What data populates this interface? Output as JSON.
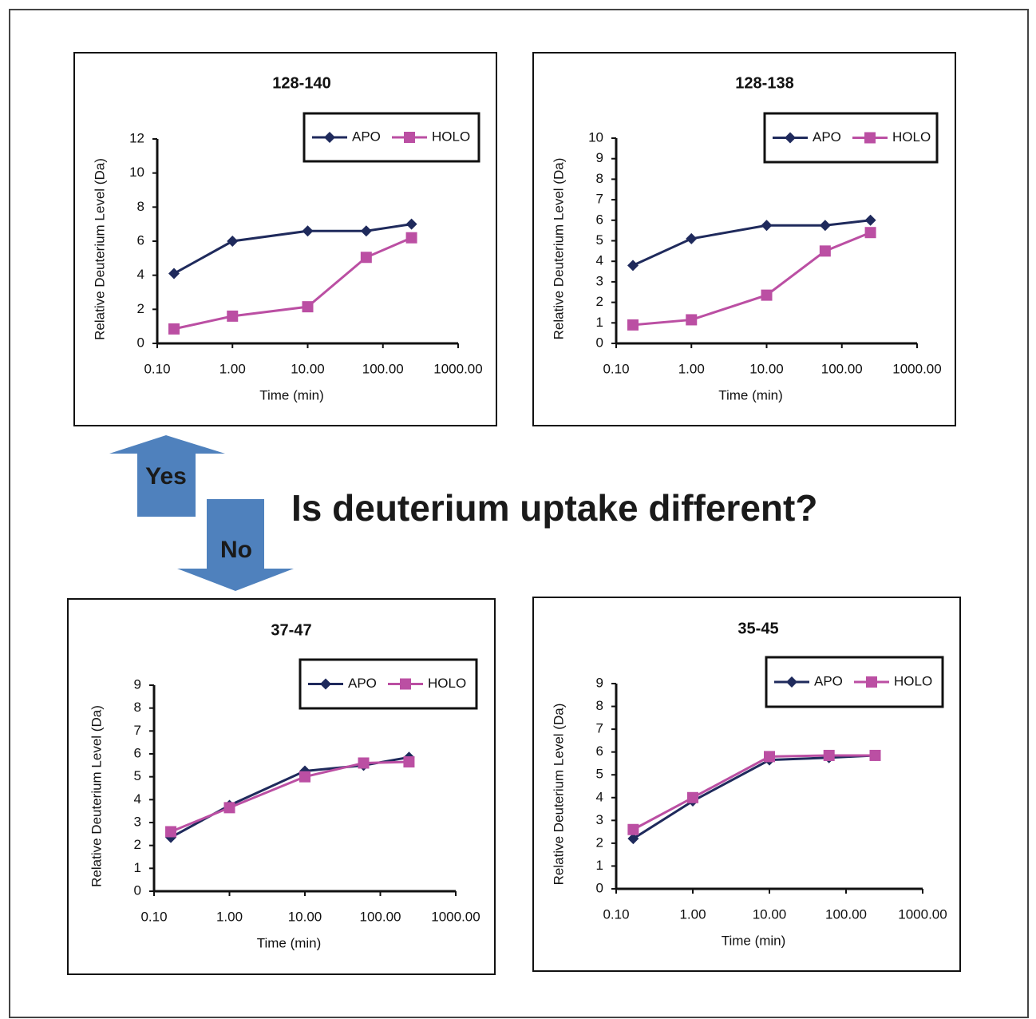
{
  "annotations": {
    "question": "Is deuterium uptake different?",
    "yes": "Yes",
    "no": "No"
  },
  "chart_data": [
    {
      "type": "line",
      "title": "128-140",
      "x_label": "Time (min)",
      "y_label": "Relative Deuterium Level  (Da)",
      "x_scale": "log",
      "legend": "upper right",
      "x": [
        0.167,
        1,
        10,
        60,
        240
      ],
      "xlim": [
        0.1,
        1000
      ],
      "xticks": [
        {
          "value": 0.1,
          "label": "0.10"
        },
        {
          "value": 1,
          "label": "1.00"
        },
        {
          "value": 10,
          "label": "10.00"
        },
        {
          "value": 100,
          "label": "100.00"
        },
        {
          "value": 1000,
          "label": "1000.00"
        }
      ],
      "ylim": [
        0,
        12
      ],
      "yticks": [
        0,
        2,
        4,
        6,
        8,
        10,
        12
      ],
      "series": [
        {
          "name": "APO",
          "color": "#1f2a5c",
          "marker": "diamond",
          "values": [
            4.1,
            6.0,
            6.6,
            6.6,
            7.0
          ]
        },
        {
          "name": "HOLO",
          "color": "#bb4fa3",
          "marker": "square",
          "values": [
            0.85,
            1.6,
            2.15,
            5.05,
            6.2
          ]
        }
      ]
    },
    {
      "type": "line",
      "title": "128-138",
      "x_label": "Time (min)",
      "y_label": "Relative Deuterium Level  (Da)",
      "x_scale": "log",
      "legend": "upper right",
      "x": [
        0.167,
        1,
        10,
        60,
        240
      ],
      "xlim": [
        0.1,
        1000
      ],
      "xticks": [
        {
          "value": 0.1,
          "label": "0.10"
        },
        {
          "value": 1,
          "label": "1.00"
        },
        {
          "value": 10,
          "label": "10.00"
        },
        {
          "value": 100,
          "label": "100.00"
        },
        {
          "value": 1000,
          "label": "1000.00"
        }
      ],
      "ylim": [
        0,
        10
      ],
      "yticks": [
        0,
        1,
        2,
        3,
        4,
        5,
        6,
        7,
        8,
        9,
        10
      ],
      "series": [
        {
          "name": "APO",
          "color": "#1f2a5c",
          "marker": "diamond",
          "values": [
            3.8,
            5.1,
            5.75,
            5.75,
            6.0
          ]
        },
        {
          "name": "HOLO",
          "color": "#bb4fa3",
          "marker": "square",
          "values": [
            0.9,
            1.15,
            2.35,
            4.5,
            5.4
          ]
        }
      ]
    },
    {
      "type": "line",
      "title": "37-47",
      "x_label": "Time (min)",
      "y_label": "Relative Deuterium Level  (Da)",
      "x_scale": "log",
      "legend": "upper right",
      "x": [
        0.167,
        1,
        10,
        60,
        240
      ],
      "xlim": [
        0.1,
        1000
      ],
      "xticks": [
        {
          "value": 0.1,
          "label": "0.10"
        },
        {
          "value": 1,
          "label": "1.00"
        },
        {
          "value": 10,
          "label": "10.00"
        },
        {
          "value": 100,
          "label": "100.00"
        },
        {
          "value": 1000,
          "label": "1000.00"
        }
      ],
      "ylim": [
        0,
        9
      ],
      "yticks": [
        0,
        1,
        2,
        3,
        4,
        5,
        6,
        7,
        8,
        9
      ],
      "series": [
        {
          "name": "APO",
          "color": "#1f2a5c",
          "marker": "diamond",
          "values": [
            2.35,
            3.75,
            5.25,
            5.5,
            5.85
          ]
        },
        {
          "name": "HOLO",
          "color": "#bb4fa3",
          "marker": "square",
          "values": [
            2.6,
            3.65,
            5.0,
            5.6,
            5.65
          ]
        }
      ]
    },
    {
      "type": "line",
      "title": "35-45",
      "x_label": "Time (min)",
      "y_label": "Relative Deuterium Level  (Da)",
      "x_scale": "log",
      "legend": "upper right",
      "x": [
        0.167,
        1,
        10,
        60,
        240
      ],
      "xlim": [
        0.1,
        1000
      ],
      "xticks": [
        {
          "value": 0.1,
          "label": "0.10"
        },
        {
          "value": 1,
          "label": "1.00"
        },
        {
          "value": 10,
          "label": "10.00"
        },
        {
          "value": 100,
          "label": "100.00"
        },
        {
          "value": 1000,
          "label": "1000.00"
        }
      ],
      "ylim": [
        0,
        9
      ],
      "yticks": [
        0,
        1,
        2,
        3,
        4,
        5,
        6,
        7,
        8,
        9
      ],
      "series": [
        {
          "name": "APO",
          "color": "#1f2a5c",
          "marker": "diamond",
          "values": [
            2.2,
            3.85,
            5.65,
            5.75,
            5.85
          ]
        },
        {
          "name": "HOLO",
          "color": "#bb4fa3",
          "marker": "square",
          "values": [
            2.6,
            4.0,
            5.8,
            5.85,
            5.85
          ]
        }
      ]
    }
  ]
}
